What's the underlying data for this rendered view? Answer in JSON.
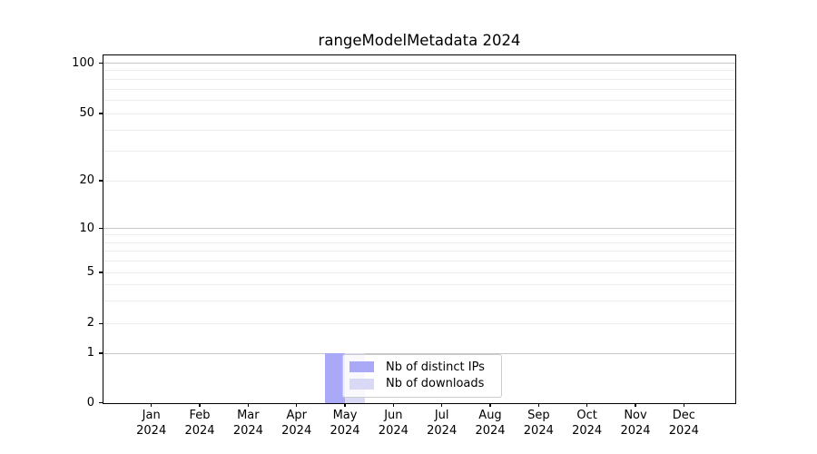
{
  "chart_data": {
    "type": "bar",
    "title": "rangeModelMetadata 2024",
    "categories": [
      "Jan",
      "Feb",
      "Mar",
      "Apr",
      "May",
      "Jun",
      "Jul",
      "Aug",
      "Sep",
      "Oct",
      "Nov",
      "Dec"
    ],
    "year_label": "2024",
    "series": [
      {
        "name": "Nb of distinct IPs",
        "color": "#a9a9f7",
        "values": [
          0,
          0,
          0,
          0,
          1,
          0,
          0,
          0,
          0,
          0,
          0,
          0
        ]
      },
      {
        "name": "Nb of downloads",
        "color": "#d9d9f6",
        "values": [
          0,
          0,
          0,
          0,
          1,
          0,
          0,
          0,
          0,
          0,
          0,
          0
        ]
      }
    ],
    "yscale": "symlog",
    "ylim": [
      0,
      115
    ],
    "y_ticks": [
      0,
      1,
      2,
      5,
      10,
      20,
      50,
      100
    ],
    "y_major_grid_values": [
      1,
      10,
      100
    ],
    "y_labeled_minor_values": [
      2,
      5,
      20,
      50
    ],
    "y_minor_grid_values": [
      3,
      4,
      6,
      7,
      8,
      9,
      30,
      40,
      60,
      70,
      80,
      90
    ],
    "grid": "horizontal, major and minor",
    "legend_position": "inside, lower area over May bars",
    "xlabel": "",
    "ylabel": "",
    "colors": {
      "bar_distinct_ips": "#a9a9f7",
      "bar_downloads": "#d9d9f6",
      "major_grid": "#c6c6c6",
      "minor_grid": "#ececec",
      "spine": "#000000",
      "text": "#000000",
      "legend_border": "#cccccc"
    }
  }
}
